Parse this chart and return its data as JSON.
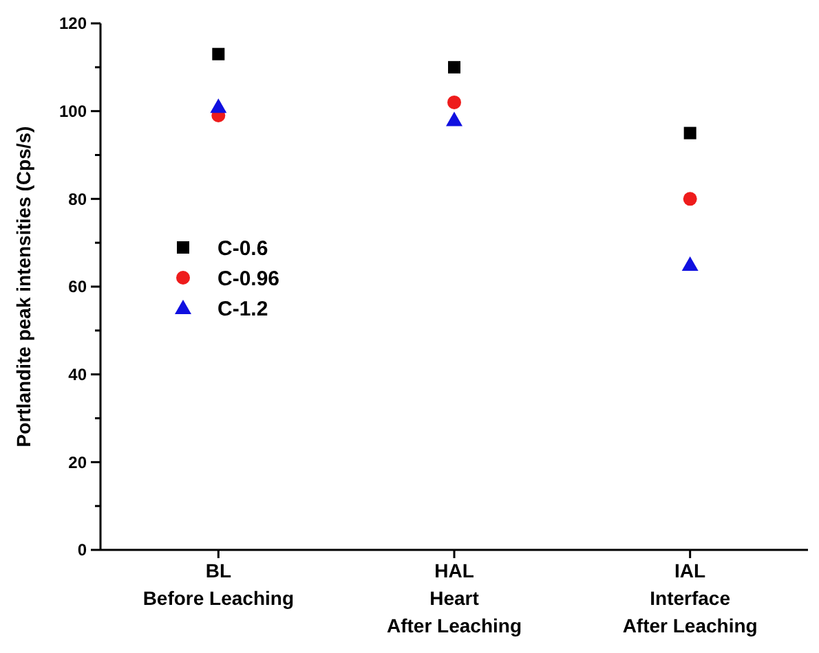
{
  "chart_data": {
    "type": "scatter",
    "ylabel": "Portlandite peak intensities (Cps/s)",
    "categories": [
      "BL\nBefore Leaching",
      "HAL\nHeart\nAfter Leaching",
      "IAL\nInterface\nAfter Leaching"
    ],
    "series": [
      {
        "name": "C-0.6",
        "color": "#000000",
        "marker": "square",
        "values": [
          113,
          110,
          95
        ]
      },
      {
        "name": "C-0.96",
        "color": "#ee1c1c",
        "marker": "circle",
        "values": [
          99,
          102,
          80
        ]
      },
      {
        "name": "C-1.2",
        "color": "#1010e0",
        "marker": "triangle",
        "values": [
          101,
          98,
          65
        ]
      }
    ],
    "ylim": [
      0,
      120
    ],
    "yticks": [
      0,
      {
        "value": 10,
        "label": null
      },
      20,
      {
        "value": 30,
        "label": null
      },
      40,
      {
        "value": 50,
        "label": null
      },
      60,
      {
        "value": 70,
        "label": null
      },
      80,
      {
        "value": 90,
        "label": null
      },
      100,
      {
        "value": 110,
        "label": null
      },
      120
    ],
    "legend": "left",
    "grid": false
  }
}
